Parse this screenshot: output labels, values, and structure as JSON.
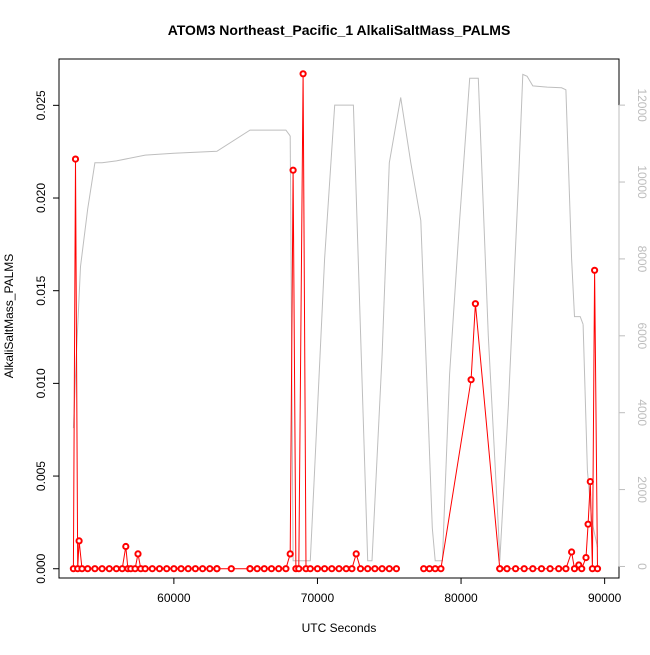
{
  "chart_data": {
    "type": "line",
    "title": "ATOM3 Northeast_Pacific_1 AlkaliSaltMass_PALMS",
    "xlabel": "UTC Seconds",
    "ylabel": "AlkaliSaltMass_PALMS",
    "xlim": [
      52000,
      91000
    ],
    "ylim": [
      -0.0005,
      0.0275
    ],
    "y2lim": [
      -300,
      13200
    ],
    "x_ticks": [
      60000,
      70000,
      80000,
      90000
    ],
    "x_tick_labels": [
      "60000",
      "70000",
      "80000",
      "90000"
    ],
    "y_ticks": [
      0.0,
      0.005,
      0.01,
      0.015,
      0.02,
      0.025
    ],
    "y_tick_labels": [
      "0.000",
      "0.005",
      "0.010",
      "0.015",
      "0.020",
      "0.025"
    ],
    "y2_ticks": [
      0,
      2000,
      4000,
      6000,
      8000,
      10000,
      12000
    ],
    "y2_tick_labels": [
      "0",
      "2000",
      "4000",
      "6000",
      "8000",
      "10000",
      "12000"
    ],
    "colors": {
      "series": "#ff0000",
      "secondary": "#bebebe",
      "axis": "#000000",
      "secondary_axis": "#bdbdbd"
    },
    "series": [
      {
        "axis": "left",
        "color": "#ff0000",
        "segments": [
          {
            "x": [
              53000,
              53150,
              53300,
              53400,
              53600,
              54000,
              54500,
              55000,
              55500,
              56000,
              56400,
              56650,
              56800,
              57000,
              57300,
              57500,
              57700,
              58000,
              58500,
              59000,
              59500,
              60000,
              60500,
              61000,
              61500,
              62000,
              62500,
              63000
            ],
            "y": [
              0.0,
              0.0221,
              0.0,
              0.0015,
              0.0,
              0.0,
              0.0,
              0.0,
              0.0,
              0.0,
              0.0,
              0.0012,
              0.0,
              0.0,
              0.0,
              0.0008,
              0.0,
              0.0,
              0.0,
              0.0,
              0.0,
              0.0,
              0.0,
              0.0,
              0.0,
              0.0,
              0.0,
              0.0
            ]
          },
          {
            "x": [
              63000,
              64000,
              65300
            ],
            "y": [
              0.0,
              0.0,
              0.0
            ]
          },
          {
            "x": [
              65300,
              65800,
              66300,
              66800,
              67300,
              67800,
              68100,
              68300,
              68500,
              68700,
              69000,
              69200,
              69500,
              70000,
              70500,
              71000,
              71500,
              72000,
              72400,
              72700,
              73000,
              73500,
              74000,
              74500,
              75000,
              75500
            ],
            "y": [
              0.0,
              0.0,
              0.0,
              0.0,
              0.0,
              0.0,
              0.0008,
              0.0215,
              0.0,
              0.0,
              0.0267,
              0.0,
              0.0,
              0.0,
              0.0,
              0.0,
              0.0,
              0.0,
              0.0,
              0.0008,
              0.0,
              0.0,
              0.0,
              0.0,
              0.0,
              0.0
            ]
          },
          {
            "x": [
              77400,
              77800,
              78200,
              78600,
              80700,
              81000,
              82700
            ],
            "y": [
              0.0,
              0.0,
              0.0,
              0.0,
              0.0102,
              0.0143,
              0.0
            ]
          },
          {
            "x": [
              82700,
              83200,
              83800,
              84400,
              85000,
              85600,
              86200,
              86800,
              87300,
              87700,
              87900,
              88200,
              88400,
              88700,
              88850,
              89000,
              89150,
              89300,
              89500
            ],
            "y": [
              0.0,
              0.0,
              0.0,
              0.0,
              0.0,
              0.0,
              0.0,
              0.0,
              0.0,
              0.0009,
              0.0,
              0.0002,
              0.0,
              0.0006,
              0.0024,
              0.0047,
              0.0,
              0.0161,
              0.0
            ]
          }
        ]
      },
      {
        "axis": "right",
        "color": "#bebebe",
        "segments": [
          {
            "x": [
              53000,
              53200,
              53500,
              54000,
              54500,
              55000,
              56000,
              58000,
              60000,
              63000,
              65300,
              66000,
              67800,
              68100
            ],
            "y": [
              3600,
              5400,
              7800,
              9300,
              10500,
              10500,
              10550,
              10700,
              10750,
              10800,
              11350,
              11350,
              11350,
              11200
            ]
          },
          {
            "x": [
              68100,
              68300,
              68500,
              69500,
              69800,
              70500,
              71200,
              71700,
              72500,
              73500,
              73800,
              74500,
              75000,
              75800,
              76500,
              77200,
              77600,
              78000,
              78200,
              78700,
              79200,
              79900,
              80600,
              80700,
              81200,
              81900,
              82600,
              82700,
              83300,
              84000,
              84300,
              84600,
              85000,
              86000,
              87000,
              87300,
              87700,
              87900,
              88300,
              88500
            ],
            "y": [
              11200,
              150,
              150,
              150,
              2500,
              8000,
              12000,
              12000,
              12000,
              150,
              150,
              5500,
              10500,
              12200,
              10500,
              9000,
              5000,
              1000,
              150,
              150,
              5000,
              9000,
              12700,
              12700,
              12700,
              6000,
              1000,
              150,
              4200,
              10000,
              12800,
              12750,
              12500,
              12470,
              12450,
              12400,
              8000,
              6500,
              6500,
              6300
            ]
          },
          {
            "x": [
              88500,
              88800,
              89100,
              89500
            ],
            "y": [
              6300,
              2500,
              1200,
              500
            ]
          }
        ]
      }
    ]
  }
}
